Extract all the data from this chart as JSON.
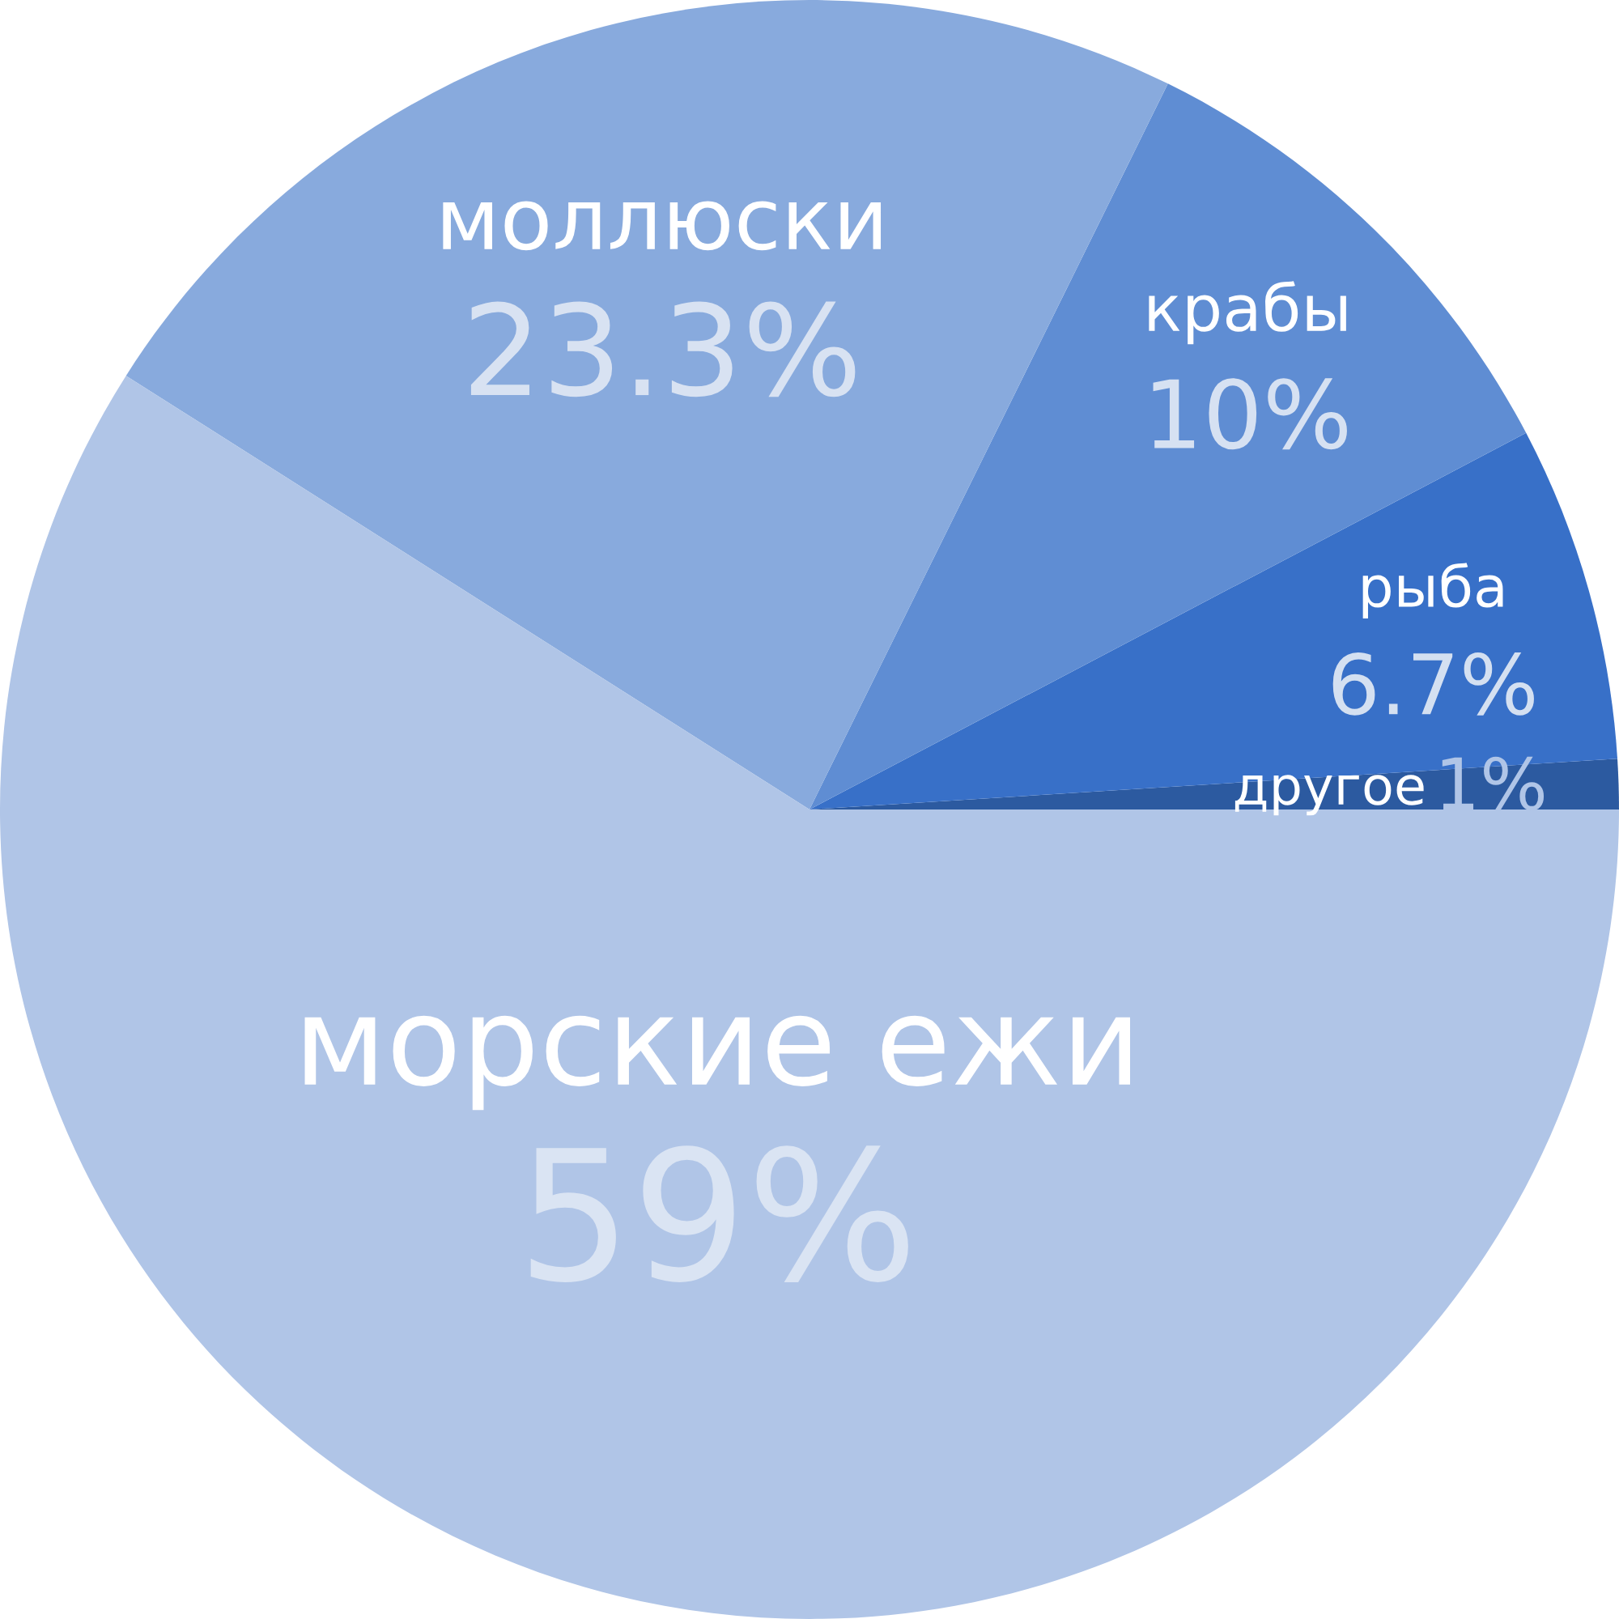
{
  "chart_data": {
    "type": "pie",
    "categories": [
      "другое",
      "рыба",
      "крабы",
      "моллюски",
      "морские ежи"
    ],
    "values": [
      1,
      6.7,
      10,
      23.3,
      59
    ],
    "colors": [
      "#2c5aa0",
      "#3870c8",
      "#5f8dd3",
      "#88aadd",
      "#b0c5e7"
    ],
    "value_labels": [
      "1%",
      "6.7%",
      "10%",
      "23.3%",
      "59%"
    ]
  }
}
